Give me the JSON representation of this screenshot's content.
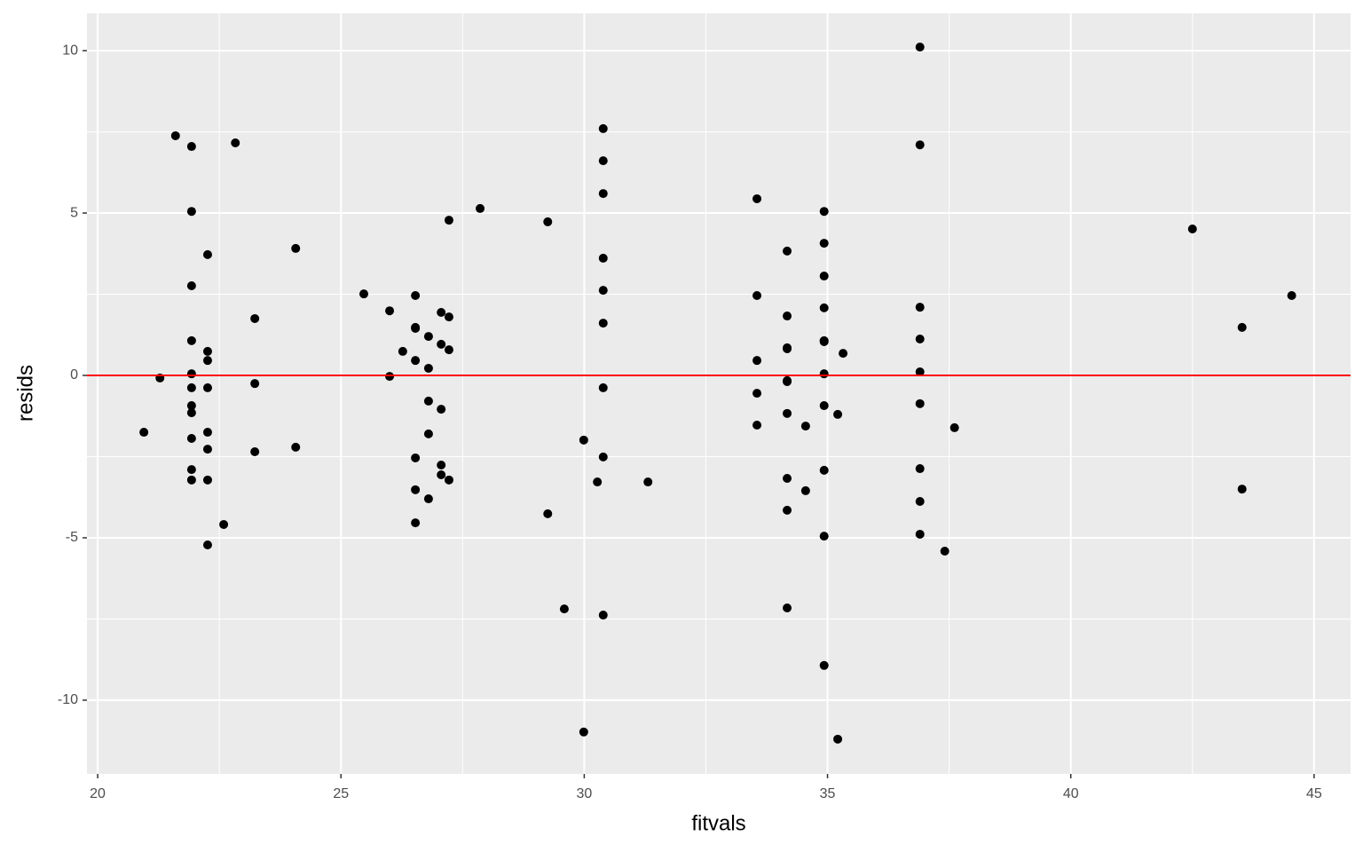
{
  "chart_data": {
    "type": "scatter",
    "x_label": "fitvals",
    "y_label": "resids",
    "x": [
      20.95,
      21.28,
      21.6,
      21.93,
      21.93,
      21.93,
      21.93,
      21.93,
      21.93,
      21.93,
      21.93,
      21.93,
      21.93,
      21.93,
      22.26,
      22.26,
      22.26,
      22.26,
      22.26,
      22.26,
      22.26,
      22.26,
      22.59,
      22.83,
      23.23,
      23.23,
      23.23,
      24.07,
      24.07,
      25.47,
      26.0,
      26.0,
      26.27,
      26.53,
      26.53,
      26.53,
      26.53,
      26.53,
      26.53,
      26.53,
      26.8,
      26.8,
      26.8,
      26.8,
      26.8,
      27.06,
      27.06,
      27.06,
      27.06,
      27.06,
      27.22,
      27.22,
      27.22,
      27.22,
      27.86,
      29.25,
      29.25,
      29.59,
      29.99,
      29.99,
      30.27,
      30.39,
      30.39,
      30.39,
      30.39,
      30.39,
      30.39,
      30.39,
      30.39,
      30.39,
      31.31,
      33.55,
      33.55,
      33.55,
      33.55,
      33.55,
      34.17,
      34.17,
      34.17,
      34.17,
      34.17,
      34.17,
      34.17,
      34.17,
      34.17,
      34.17,
      34.55,
      34.55,
      34.93,
      34.93,
      34.93,
      34.93,
      34.93,
      34.93,
      34.93,
      34.93,
      34.93,
      34.93,
      34.93,
      35.21,
      35.21,
      35.32,
      36.9,
      36.9,
      36.9,
      36.9,
      36.9,
      36.9,
      36.9,
      36.9,
      36.9,
      37.41,
      37.61,
      42.5,
      43.52,
      43.52,
      44.54
    ],
    "values": [
      -1.75,
      -0.08,
      7.38,
      7.05,
      5.05,
      2.76,
      1.07,
      0.05,
      -0.38,
      -0.93,
      -1.15,
      -1.94,
      -2.9,
      -3.22,
      3.72,
      0.74,
      0.46,
      -0.38,
      -1.75,
      -2.27,
      -3.22,
      -5.22,
      -4.59,
      7.16,
      1.75,
      -0.25,
      -2.35,
      3.91,
      -2.21,
      2.51,
      1.99,
      -0.03,
      0.74,
      2.46,
      1.48,
      1.45,
      0.46,
      -2.54,
      -3.52,
      -4.54,
      1.2,
      0.22,
      -0.79,
      -1.8,
      -3.8,
      1.94,
      0.96,
      -1.04,
      -2.76,
      -3.06,
      4.78,
      1.8,
      0.79,
      -3.22,
      5.14,
      4.73,
      -4.26,
      -7.19,
      -1.99,
      -10.98,
      -3.28,
      7.6,
      6.61,
      5.6,
      3.61,
      2.62,
      1.61,
      -0.38,
      -2.51,
      -7.38,
      -3.28,
      5.44,
      2.46,
      0.46,
      -0.55,
      -1.53,
      3.83,
      1.83,
      0.85,
      0.82,
      -0.16,
      -0.19,
      -1.17,
      -3.17,
      -4.15,
      -7.16,
      -1.56,
      -3.55,
      5.05,
      4.07,
      3.06,
      2.08,
      1.07,
      1.04,
      0.05,
      -0.93,
      -2.92,
      -4.95,
      -8.93,
      -1.2,
      -11.2,
      0.68,
      10.11,
      7.1,
      2.1,
      1.12,
      0.11,
      -0.87,
      -2.87,
      -3.88,
      -4.89,
      -5.41,
      -1.61,
      4.51,
      1.48,
      -3.5,
      2.46
    ],
    "color": "#000000",
    "xlim": [
      19.78,
      45.75
    ],
    "ylim": [
      -12.27,
      11.15
    ],
    "xticks": [
      20,
      25,
      30,
      35,
      40,
      45
    ],
    "yticks": [
      -10,
      -5,
      0,
      5,
      10
    ],
    "x_minor_grid": [
      22.5,
      27.5,
      32.5,
      37.5,
      42.5
    ],
    "y_minor_grid": [
      -7.5,
      -2.5,
      2.5,
      7.5
    ],
    "grid": true,
    "hline": {
      "y": 0,
      "color": "#ff0000"
    }
  }
}
